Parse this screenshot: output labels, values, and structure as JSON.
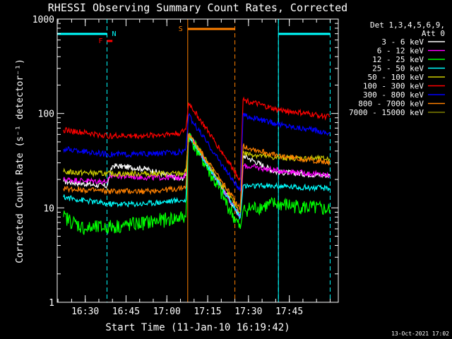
{
  "chart_data": {
    "type": "line",
    "title": "RHESSI Observing Summary Count Rates, Corrected",
    "xlabel": "Start Time (11-Jan-10 16:19:42)",
    "ylabel": "Corrected Count Rate (s⁻¹ detector⁻¹)",
    "y_scale": "log",
    "ylim": [
      1,
      1000
    ],
    "xlim": [
      "16:19:42",
      "18:03:00"
    ],
    "x_ticks": [
      "16:30",
      "16:45",
      "17:00",
      "17:15",
      "17:30",
      "17:45"
    ],
    "y_ticks": [
      "1",
      "10",
      "100",
      "1000"
    ],
    "grid": false,
    "legend_title": "Det 1,3,4,5,6,9, Att 0",
    "legend_position": "right",
    "series": [
      {
        "name": "3 - 6 keV",
        "color": "#ffffff",
        "x": [
          "16:22",
          "16:38",
          "16:40",
          "16:52",
          "17:05",
          "17:07",
          "17:08",
          "17:27",
          "17:28",
          "17:40",
          "18:00"
        ],
        "y": [
          19,
          17,
          28,
          26,
          20,
          22,
          60,
          8,
          36,
          24,
          22
        ]
      },
      {
        "name": "6 - 12 keV",
        "color": "#ff00ff",
        "x": [
          "16:22",
          "16:38",
          "16:40",
          "16:52",
          "17:05",
          "17:07",
          "17:08",
          "17:27",
          "17:28",
          "17:40",
          "18:00"
        ],
        "y": [
          20,
          19,
          22,
          21,
          21,
          23,
          60,
          8,
          28,
          25,
          22
        ]
      },
      {
        "name": "12 - 25 keV",
        "color": "#00ff00",
        "x": [
          "16:22",
          "16:30",
          "16:45",
          "17:00",
          "17:07",
          "17:08",
          "17:27",
          "17:28",
          "17:40",
          "18:00"
        ],
        "y": [
          8,
          6,
          6.5,
          7.5,
          8,
          60,
          6,
          9.5,
          11,
          9.5
        ]
      },
      {
        "name": "25 - 50 keV",
        "color": "#00ffff",
        "x": [
          "16:22",
          "16:38",
          "16:50",
          "17:05",
          "17:07",
          "17:08",
          "17:27",
          "17:28",
          "17:40",
          "18:00"
        ],
        "y": [
          13,
          11,
          11,
          12,
          12,
          60,
          8,
          17,
          17,
          16
        ]
      },
      {
        "name": "50 - 100 keV",
        "color": "#cccc00",
        "x": [
          "16:22",
          "16:38",
          "16:52",
          "17:05",
          "17:07",
          "17:08",
          "17:27",
          "17:28",
          "17:40",
          "18:00"
        ],
        "y": [
          24,
          23,
          23,
          23,
          24,
          60,
          9,
          38,
          34,
          33
        ]
      },
      {
        "name": "100 - 300 keV",
        "color": "#ff0000",
        "x": [
          "16:22",
          "16:38",
          "16:52",
          "17:05",
          "17:07",
          "17:08",
          "17:27",
          "17:28",
          "17:40",
          "18:00"
        ],
        "y": [
          67,
          58,
          58,
          62,
          68,
          130,
          20,
          140,
          110,
          92
        ]
      },
      {
        "name": "300 - 800 keV",
        "color": "#0000ff",
        "x": [
          "16:22",
          "16:38",
          "16:52",
          "17:05",
          "17:07",
          "17:08",
          "17:27",
          "17:28",
          "17:40",
          "18:00"
        ],
        "y": [
          42,
          37,
          37,
          39,
          42,
          95,
          15,
          96,
          78,
          62
        ]
      },
      {
        "name": "800 - 7000 keV",
        "color": "#ff8000",
        "x": [
          "16:22",
          "16:38",
          "16:52",
          "17:05",
          "17:07",
          "17:08",
          "17:27",
          "17:28",
          "17:40",
          "18:00"
        ],
        "y": [
          16,
          15,
          15,
          16,
          17,
          60,
          10,
          45,
          36,
          30
        ]
      },
      {
        "name": "7000 - 15000 keV",
        "color": "#808000",
        "x": [],
        "y": []
      }
    ],
    "annotations": [
      {
        "label": "N",
        "color": "#00ffff"
      },
      {
        "label": "F",
        "color": "#ff0000"
      },
      {
        "label": "S",
        "color": "#ff8000"
      }
    ],
    "timestamp": "13-Oct-2021 17:02"
  }
}
